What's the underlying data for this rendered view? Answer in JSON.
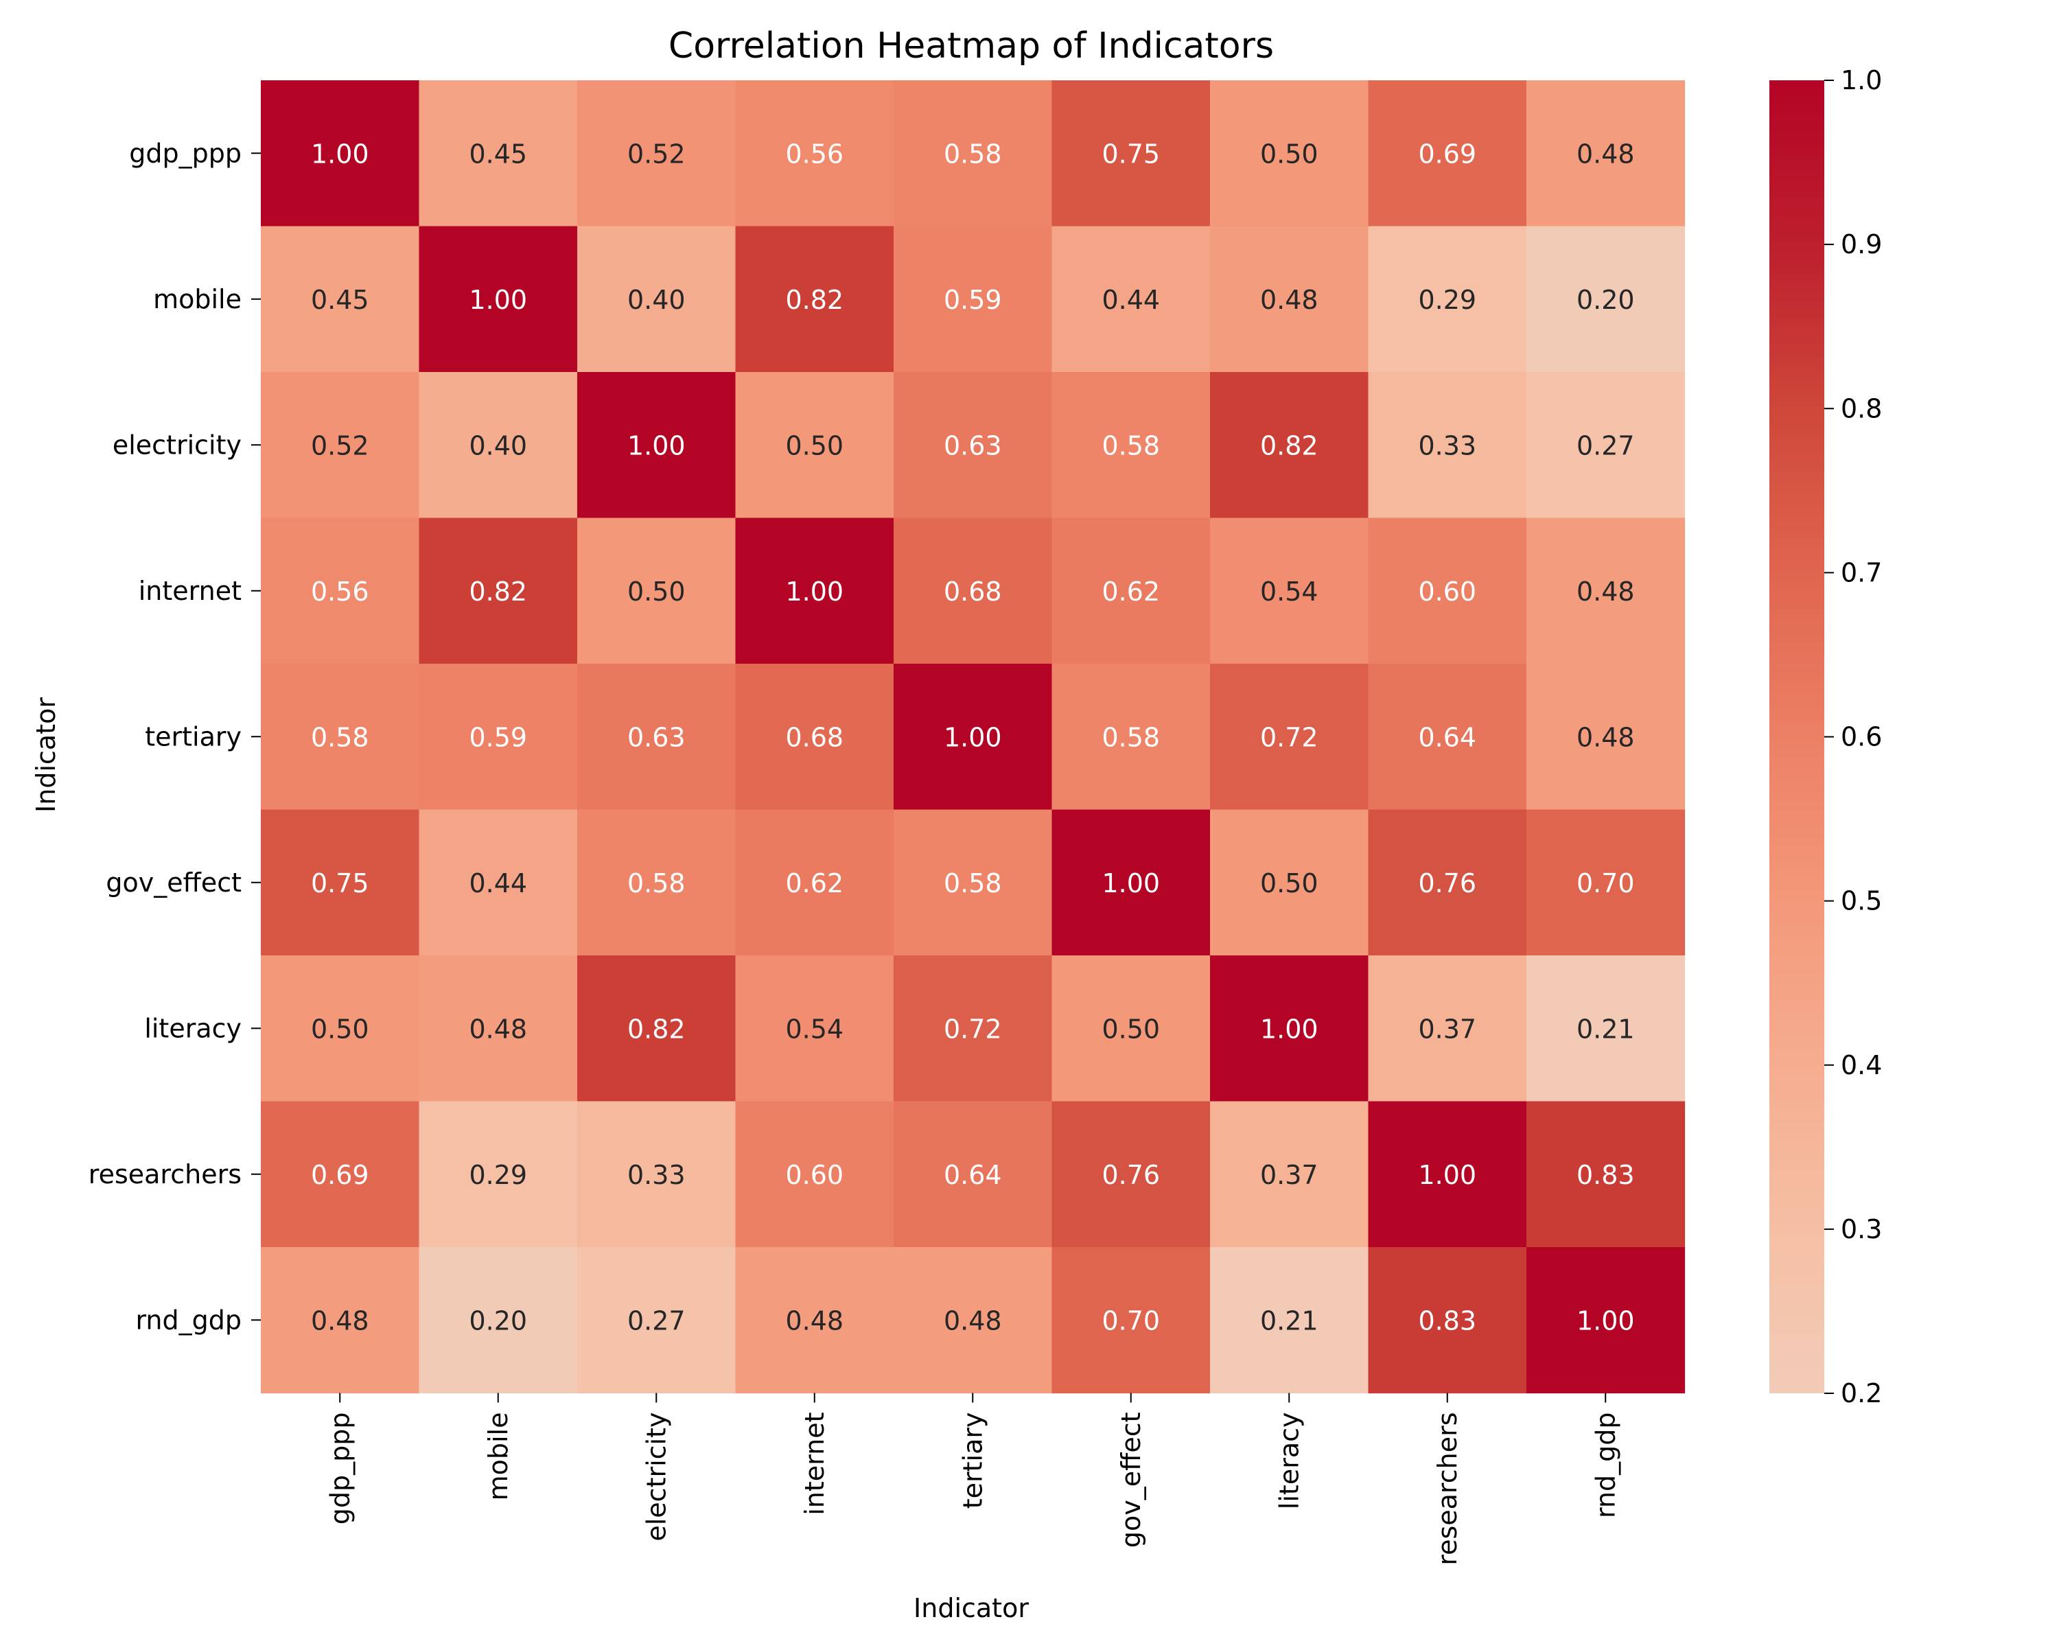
{
  "chart_data": {
    "type": "heatmap",
    "title": "Correlation Heatmap of Indicators",
    "xlabel": "Indicator",
    "ylabel": "Indicator",
    "x_categories": [
      "gdp_ppp",
      "mobile",
      "electricity",
      "internet",
      "tertiary",
      "gov_effect",
      "literacy",
      "researchers",
      "rnd_gdp"
    ],
    "y_categories": [
      "gdp_ppp",
      "mobile",
      "electricity",
      "internet",
      "tertiary",
      "gov_effect",
      "literacy",
      "researchers",
      "rnd_gdp"
    ],
    "values": [
      [
        1.0,
        0.45,
        0.52,
        0.56,
        0.58,
        0.75,
        0.5,
        0.69,
        0.48
      ],
      [
        0.45,
        1.0,
        0.4,
        0.82,
        0.59,
        0.44,
        0.48,
        0.29,
        0.2
      ],
      [
        0.52,
        0.4,
        1.0,
        0.5,
        0.63,
        0.58,
        0.82,
        0.33,
        0.27
      ],
      [
        0.56,
        0.82,
        0.5,
        1.0,
        0.68,
        0.62,
        0.54,
        0.6,
        0.48
      ],
      [
        0.58,
        0.59,
        0.63,
        0.68,
        1.0,
        0.58,
        0.72,
        0.64,
        0.48
      ],
      [
        0.75,
        0.44,
        0.58,
        0.62,
        0.58,
        1.0,
        0.5,
        0.76,
        0.7
      ],
      [
        0.5,
        0.48,
        0.82,
        0.54,
        0.72,
        0.5,
        1.0,
        0.37,
        0.21
      ],
      [
        0.69,
        0.29,
        0.33,
        0.6,
        0.64,
        0.76,
        0.37,
        1.0,
        0.83
      ],
      [
        0.48,
        0.2,
        0.27,
        0.48,
        0.48,
        0.7,
        0.21,
        0.83,
        1.0
      ]
    ],
    "value_format": "2-decimal",
    "colorbar": {
      "range": [
        0.2,
        1.0
      ],
      "ticks": [
        "0.2",
        "0.3",
        "0.4",
        "0.5",
        "0.6",
        "0.7",
        "0.8",
        "0.9",
        "1.0"
      ]
    },
    "colors": {
      "low": "#f2cbb7",
      "mid": "#f4987a",
      "high": "#b40426",
      "dark_text": "#262626",
      "light_text": "#ffffff"
    }
  }
}
